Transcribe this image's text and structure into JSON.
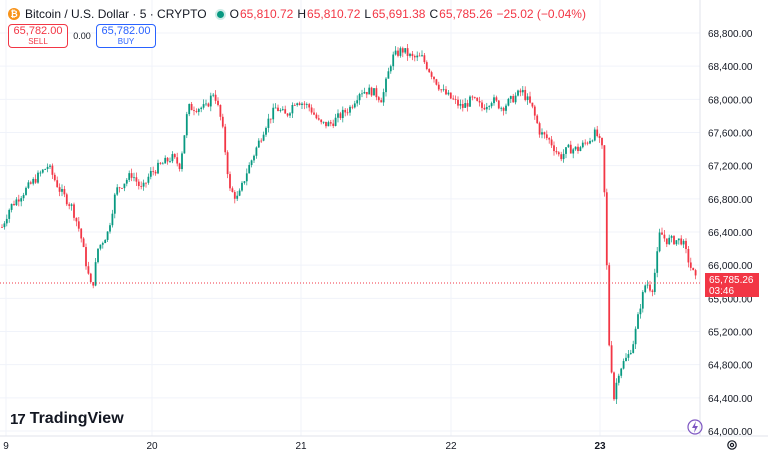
{
  "header": {
    "coin_letter": "₿",
    "symbol": "Bitcoin / U.S. Dollar · 5 · CRYPTO",
    "o_label": "O",
    "o_value": "65,810.72",
    "h_label": "H",
    "h_value": "65,810.72",
    "l_label": "L",
    "l_value": "65,691.38",
    "c_label": "C",
    "c_value": "65,785.26",
    "change": "−25.02 (−0.04%)"
  },
  "trade": {
    "sell_price": "65,782.00",
    "sell_label": "SELL",
    "spread": "0.00",
    "buy_price": "65,782.00",
    "buy_label": "BUY"
  },
  "brand": {
    "logo_text": "TradingView",
    "logo_mark": "17"
  },
  "last_price": {
    "value": "65,785.26",
    "countdown": "03:46"
  },
  "colors": {
    "up": "#089981",
    "down": "#f23645",
    "grid": "#f0f3fa",
    "text": "#131722",
    "buy": "#2962ff"
  },
  "chart_data": {
    "type": "candlestick",
    "x": [
      "9",
      "20",
      "21",
      "22",
      "23"
    ],
    "ylim": [
      63900,
      69000
    ],
    "y_ticks": [
      "68,800.00",
      "68,400.00",
      "68,000.00",
      "67,600.00",
      "67,200.00",
      "66,800.00",
      "66,400.00",
      "66,000.00",
      "65,600.00",
      "65,200.00",
      "64,800.00",
      "64,400.00",
      "64,000.00"
    ],
    "last_price": 65785.26,
    "close_path": [
      [
        0,
        66400
      ],
      [
        10,
        66700
      ],
      [
        25,
        66900
      ],
      [
        40,
        67100
      ],
      [
        48,
        67200
      ],
      [
        60,
        66900
      ],
      [
        72,
        66700
      ],
      [
        80,
        66400
      ],
      [
        88,
        65900
      ],
      [
        92,
        65700
      ],
      [
        98,
        66200
      ],
      [
        108,
        66400
      ],
      [
        116,
        66900
      ],
      [
        124,
        67000
      ],
      [
        132,
        67100
      ],
      [
        142,
        66900
      ],
      [
        150,
        67100
      ],
      [
        160,
        67200
      ],
      [
        172,
        67300
      ],
      [
        180,
        67200
      ],
      [
        188,
        67900
      ],
      [
        196,
        67900
      ],
      [
        206,
        67900
      ],
      [
        214,
        68100
      ],
      [
        222,
        67700
      ],
      [
        230,
        66900
      ],
      [
        238,
        66800
      ],
      [
        246,
        67100
      ],
      [
        256,
        67400
      ],
      [
        266,
        67700
      ],
      [
        276,
        67900
      ],
      [
        286,
        67800
      ],
      [
        296,
        68000
      ],
      [
        310,
        67900
      ],
      [
        320,
        67700
      ],
      [
        330,
        67700
      ],
      [
        340,
        67800
      ],
      [
        350,
        67900
      ],
      [
        360,
        68100
      ],
      [
        372,
        68100
      ],
      [
        382,
        68000
      ],
      [
        392,
        68500
      ],
      [
        402,
        68600
      ],
      [
        412,
        68500
      ],
      [
        422,
        68500
      ],
      [
        432,
        68300
      ],
      [
        442,
        68100
      ],
      [
        452,
        68000
      ],
      [
        462,
        67900
      ],
      [
        472,
        68000
      ],
      [
        482,
        67900
      ],
      [
        492,
        68000
      ],
      [
        502,
        67900
      ],
      [
        512,
        68000
      ],
      [
        522,
        68100
      ],
      [
        532,
        67900
      ],
      [
        540,
        67600
      ],
      [
        550,
        67500
      ],
      [
        560,
        67300
      ],
      [
        568,
        67400
      ],
      [
        578,
        67400
      ],
      [
        588,
        67500
      ],
      [
        596,
        67600
      ],
      [
        602,
        67400
      ],
      [
        606,
        66500
      ],
      [
        608,
        65200
      ],
      [
        612,
        64700
      ],
      [
        614,
        64400
      ],
      [
        618,
        64700
      ],
      [
        622,
        64800
      ],
      [
        628,
        64900
      ],
      [
        634,
        65100
      ],
      [
        640,
        65500
      ],
      [
        646,
        65800
      ],
      [
        652,
        65700
      ],
      [
        656,
        66000
      ],
      [
        660,
        66400
      ],
      [
        666,
        66300
      ],
      [
        674,
        66300
      ],
      [
        682,
        66300
      ],
      [
        690,
        66000
      ],
      [
        697,
        65785
      ]
    ]
  }
}
